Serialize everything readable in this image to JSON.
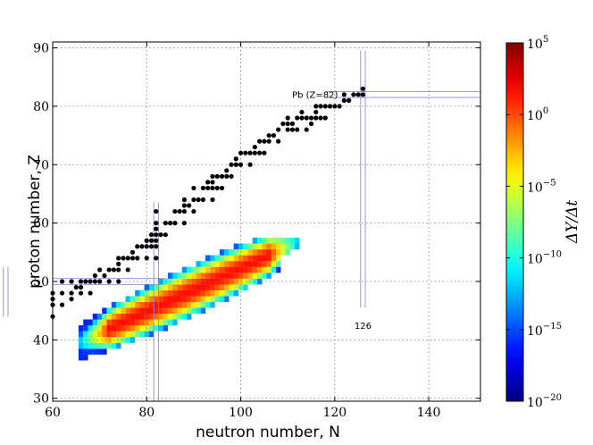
{
  "chart_data": {
    "type": "scatter+heatmap",
    "xlabel": "neutron number, N",
    "ylabel": "proton number, Z",
    "xlim": [
      60,
      151
    ],
    "ylim": [
      29.5,
      91
    ],
    "xticks": [
      60,
      80,
      100,
      120,
      140
    ],
    "yticks": [
      30,
      40,
      50,
      60,
      70,
      80,
      90
    ],
    "grid": true,
    "grid_style": "dotted",
    "colorbar": {
      "label": "ΔY/Δt",
      "scale": "log",
      "range_exponent": [
        -20,
        5
      ],
      "tick_exponents": [
        5,
        0,
        -5,
        -10,
        -15,
        -20
      ],
      "tick_base": "10",
      "colormap": "jet"
    },
    "magic_lines": {
      "N": [
        50,
        82,
        126
      ],
      "Z": [
        50,
        82
      ]
    },
    "annotations": [
      {
        "text": "Pb (Z=82)",
        "N": 126,
        "Z": 82
      },
      {
        "text": "126",
        "N": 126,
        "Z": 44
      }
    ],
    "stable_isotopes_note": "black points",
    "stable_isotopes": [
      [
        60,
        44
      ],
      [
        60,
        46
      ],
      [
        60,
        47
      ],
      [
        60,
        48
      ],
      [
        62,
        46
      ],
      [
        62,
        48
      ],
      [
        62,
        50
      ],
      [
        64,
        47
      ],
      [
        64,
        48
      ],
      [
        64,
        50
      ],
      [
        65,
        49
      ],
      [
        66,
        48
      ],
      [
        66,
        49
      ],
      [
        66,
        50
      ],
      [
        67,
        50
      ],
      [
        68,
        48
      ],
      [
        68,
        50
      ],
      [
        69,
        50
      ],
      [
        69,
        51
      ],
      [
        70,
        50
      ],
      [
        70,
        52
      ],
      [
        71,
        51
      ],
      [
        72,
        50
      ],
      [
        72,
        52
      ],
      [
        73,
        52
      ],
      [
        74,
        50
      ],
      [
        74,
        52
      ],
      [
        74,
        53
      ],
      [
        74,
        54
      ],
      [
        75,
        54
      ],
      [
        76,
        52
      ],
      [
        76,
        54
      ],
      [
        77,
        54
      ],
      [
        77,
        55
      ],
      [
        78,
        54
      ],
      [
        78,
        56
      ],
      [
        79,
        56
      ],
      [
        80,
        54
      ],
      [
        80,
        56
      ],
      [
        80,
        57
      ],
      [
        81,
        56
      ],
      [
        81,
        57
      ],
      [
        81,
        58
      ],
      [
        82,
        54
      ],
      [
        82,
        56
      ],
      [
        82,
        57
      ],
      [
        82,
        58
      ],
      [
        82,
        59
      ],
      [
        82,
        60
      ],
      [
        82,
        62
      ],
      [
        83,
        58
      ],
      [
        84,
        58
      ],
      [
        84,
        60
      ],
      [
        85,
        60
      ],
      [
        86,
        60
      ],
      [
        86,
        62
      ],
      [
        87,
        62
      ],
      [
        88,
        60
      ],
      [
        88,
        62
      ],
      [
        88,
        63
      ],
      [
        88,
        64
      ],
      [
        89,
        63
      ],
      [
        90,
        62
      ],
      [
        90,
        64
      ],
      [
        90,
        66
      ],
      [
        91,
        64
      ],
      [
        92,
        64
      ],
      [
        92,
        66
      ],
      [
        93,
        66
      ],
      [
        93,
        67
      ],
      [
        94,
        64
      ],
      [
        94,
        66
      ],
      [
        94,
        67
      ],
      [
        94,
        68
      ],
      [
        95,
        66
      ],
      [
        95,
        68
      ],
      [
        96,
        66
      ],
      [
        96,
        68
      ],
      [
        97,
        68
      ],
      [
        97,
        69
      ],
      [
        98,
        68
      ],
      [
        98,
        70
      ],
      [
        99,
        70
      ],
      [
        99,
        71
      ],
      [
        100,
        70
      ],
      [
        100,
        72
      ],
      [
        101,
        72
      ],
      [
        102,
        70
      ],
      [
        102,
        72
      ],
      [
        103,
        72
      ],
      [
        103,
        73
      ],
      [
        104,
        72
      ],
      [
        104,
        74
      ],
      [
        105,
        72
      ],
      [
        105,
        74
      ],
      [
        106,
        74
      ],
      [
        106,
        75
      ],
      [
        107,
        75
      ],
      [
        108,
        74
      ],
      [
        108,
        76
      ],
      [
        109,
        77
      ],
      [
        110,
        76
      ],
      [
        110,
        77
      ],
      [
        110,
        78
      ],
      [
        111,
        76
      ],
      [
        111,
        77
      ],
      [
        112,
        76
      ],
      [
        112,
        78
      ],
      [
        113,
        78
      ],
      [
        113,
        79
      ],
      [
        114,
        76
      ],
      [
        114,
        78
      ],
      [
        115,
        77
      ],
      [
        115,
        78
      ],
      [
        116,
        78
      ],
      [
        116,
        79
      ],
      [
        116,
        80
      ],
      [
        117,
        78
      ],
      [
        117,
        80
      ],
      [
        118,
        78
      ],
      [
        118,
        80
      ],
      [
        119,
        80
      ],
      [
        120,
        80
      ],
      [
        121,
        80
      ],
      [
        122,
        81
      ],
      [
        122,
        82
      ],
      [
        123,
        81
      ],
      [
        124,
        82
      ],
      [
        125,
        82
      ],
      [
        126,
        82
      ],
      [
        126,
        83
      ]
    ],
    "heatmap_note": "r-process abundance band; cells [N, Z, log10(ΔY/Δt)]",
    "heatmap_cells": []
  }
}
